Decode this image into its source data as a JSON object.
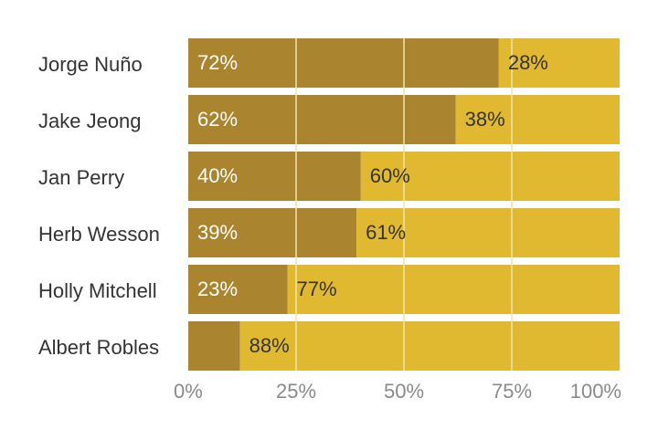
{
  "chart_data": {
    "type": "bar",
    "stacked": true,
    "orientation": "horizontal",
    "categories": [
      "Jorge Nuño",
      "Jake Jeong",
      "Jan Perry",
      "Herb Wesson",
      "Holly Mitchell",
      "Albert Robles"
    ],
    "series": [
      {
        "values": [
          72,
          62,
          40,
          39,
          23,
          12
        ],
        "color": "#aa842e",
        "labels": [
          "72%",
          "62%",
          "40%",
          "39%",
          "23%",
          ""
        ]
      },
      {
        "values": [
          28,
          38,
          60,
          61,
          77,
          88
        ],
        "color": "#e1b930",
        "labels": [
          "28%",
          "38%",
          "60%",
          "61%",
          "77%",
          "88%"
        ]
      }
    ],
    "xlim": [
      0,
      100
    ],
    "xticks": [
      0,
      25,
      50,
      75,
      100
    ],
    "xtick_labels": [
      "0%",
      "25%",
      "50%",
      "75%",
      "100%"
    ],
    "grid": true,
    "gridline_color": "#f3e2a8"
  }
}
